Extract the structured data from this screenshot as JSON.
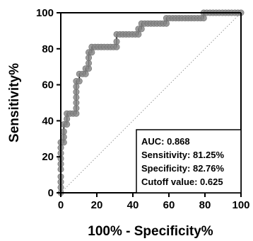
{
  "chart_data": {
    "type": "line",
    "xlabel": "100% - Specificity%",
    "ylabel": "Sensitivity%",
    "xlim": [
      0,
      100
    ],
    "ylim": [
      0,
      100
    ],
    "x_ticks": [
      "0",
      "20",
      "40",
      "60",
      "80",
      "100"
    ],
    "y_ticks": [
      "0",
      "20",
      "40",
      "60",
      "80",
      "100"
    ],
    "reference_line": {
      "from": [
        0,
        0
      ],
      "to": [
        100,
        100
      ],
      "style": "dotted"
    },
    "series": [
      {
        "color": "#000000",
        "marker_color": "#8a8a8a",
        "points": [
          [
            0,
            0
          ],
          [
            0,
            3
          ],
          [
            0,
            6
          ],
          [
            0,
            9
          ],
          [
            0,
            13
          ],
          [
            0,
            16
          ],
          [
            0,
            19
          ],
          [
            0,
            22
          ],
          [
            0,
            25
          ],
          [
            0,
            28
          ],
          [
            1.7,
            28
          ],
          [
            1.7,
            31
          ],
          [
            1.7,
            34
          ],
          [
            1.7,
            38
          ],
          [
            3.4,
            38
          ],
          [
            3.4,
            41
          ],
          [
            3.4,
            44
          ],
          [
            5.2,
            44
          ],
          [
            6.9,
            44
          ],
          [
            8.6,
            44
          ],
          [
            8.6,
            47
          ],
          [
            8.6,
            50
          ],
          [
            8.6,
            53
          ],
          [
            8.6,
            56
          ],
          [
            8.6,
            59
          ],
          [
            8.6,
            62
          ],
          [
            10.3,
            62
          ],
          [
            10.3,
            66
          ],
          [
            12.1,
            66
          ],
          [
            13.8,
            66
          ],
          [
            13.8,
            69
          ],
          [
            15.5,
            69
          ],
          [
            15.5,
            72
          ],
          [
            15.5,
            75
          ],
          [
            15.5,
            78
          ],
          [
            17.2,
            78
          ],
          [
            17.2,
            81
          ],
          [
            19,
            81
          ],
          [
            20.7,
            81
          ],
          [
            22.4,
            81
          ],
          [
            24.1,
            81
          ],
          [
            25.9,
            81
          ],
          [
            27.6,
            81
          ],
          [
            29.3,
            81
          ],
          [
            31,
            81
          ],
          [
            31,
            84
          ],
          [
            31,
            88
          ],
          [
            32.8,
            88
          ],
          [
            34.5,
            88
          ],
          [
            36.2,
            88
          ],
          [
            37.9,
            88
          ],
          [
            39.7,
            88
          ],
          [
            41.4,
            88
          ],
          [
            43.1,
            88
          ],
          [
            43.1,
            91
          ],
          [
            44.8,
            91
          ],
          [
            44.8,
            94
          ],
          [
            46.6,
            94
          ],
          [
            48.3,
            94
          ],
          [
            50,
            94
          ],
          [
            51.7,
            94
          ],
          [
            53.4,
            94
          ],
          [
            55.2,
            94
          ],
          [
            56.9,
            94
          ],
          [
            58.6,
            94
          ],
          [
            58.6,
            97
          ],
          [
            60.3,
            97
          ],
          [
            62.1,
            97
          ],
          [
            63.8,
            97
          ],
          [
            65.5,
            97
          ],
          [
            67.2,
            97
          ],
          [
            69,
            97
          ],
          [
            70.7,
            97
          ],
          [
            72.4,
            97
          ],
          [
            74.1,
            97
          ],
          [
            75.9,
            97
          ],
          [
            77.6,
            97
          ],
          [
            79.3,
            97
          ],
          [
            79.3,
            100
          ],
          [
            81,
            100
          ],
          [
            82.8,
            100
          ],
          [
            84.5,
            100
          ],
          [
            86.2,
            100
          ],
          [
            87.9,
            100
          ],
          [
            89.7,
            100
          ],
          [
            91.4,
            100
          ],
          [
            93.1,
            100
          ],
          [
            94.8,
            100
          ],
          [
            96.6,
            100
          ],
          [
            98.3,
            100
          ],
          [
            100,
            100
          ]
        ]
      }
    ],
    "annotation": {
      "lines": [
        "AUC: 0.868",
        "Sensitivity: 81.25%",
        "Specificity: 82.76%",
        "Cutoff value: 0.625"
      ],
      "placement": "bottom-right"
    }
  }
}
